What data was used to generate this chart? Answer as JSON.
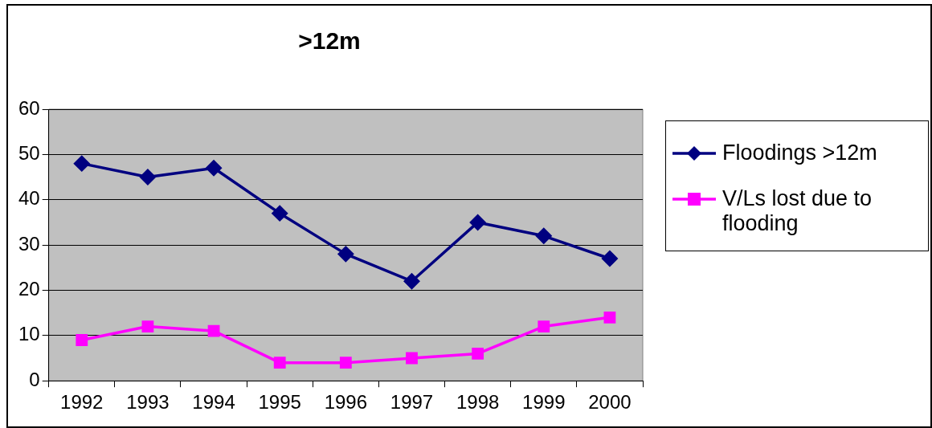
{
  "chart_data": {
    "type": "line",
    "title": ">12m",
    "categories": [
      "1992",
      "1993",
      "1994",
      "1995",
      "1996",
      "1997",
      "1998",
      "1999",
      "2000"
    ],
    "series": [
      {
        "name": "Floodings >12m",
        "color": "#000080",
        "marker": "diamond",
        "values": [
          48,
          45,
          47,
          37,
          28,
          22,
          35,
          32,
          27
        ]
      },
      {
        "name": "V/Ls lost due to flooding",
        "color": "#ff00ff",
        "marker": "square",
        "values": [
          9,
          12,
          11,
          4,
          4,
          5,
          6,
          12,
          14
        ]
      }
    ],
    "ylim": [
      0,
      60
    ],
    "yticks": [
      0,
      10,
      20,
      30,
      40,
      50,
      60
    ],
    "grid": "y",
    "legend": "right",
    "line_style": "solid"
  }
}
